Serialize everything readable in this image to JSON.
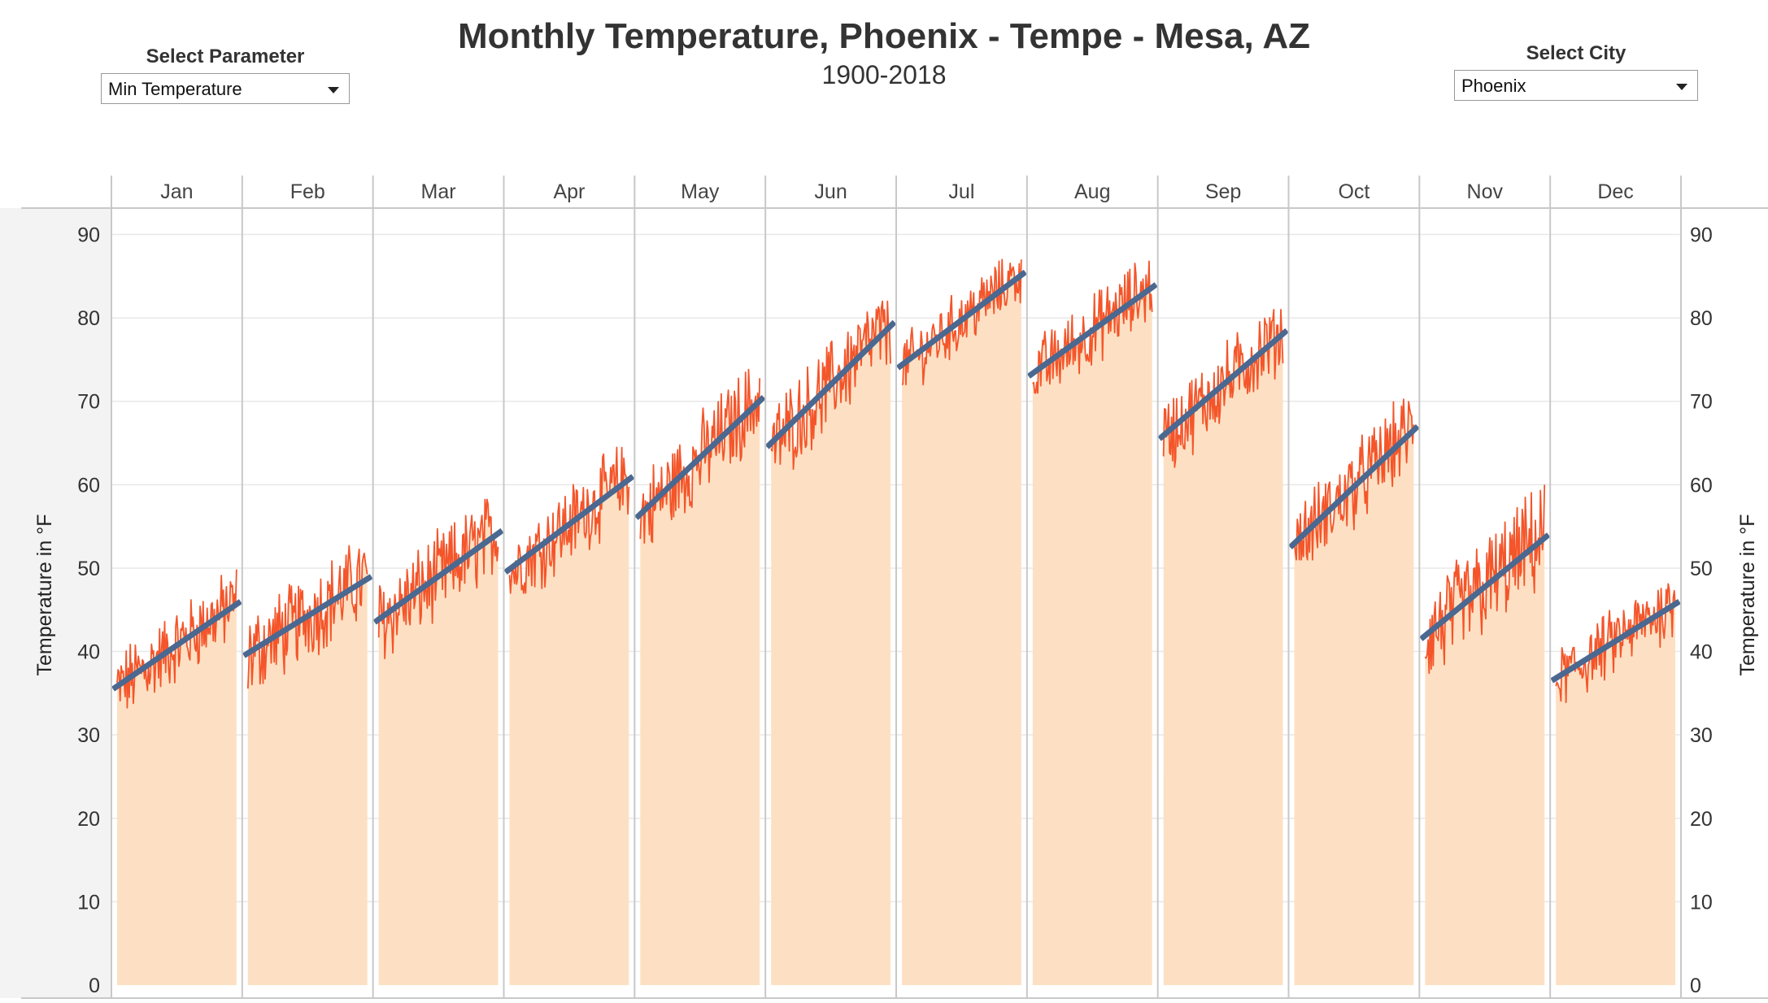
{
  "header": {
    "title": "Monthly Temperature, Phoenix - Tempe - Mesa, AZ",
    "subtitle": "1900-2018"
  },
  "controls": {
    "parameter": {
      "label": "Select Parameter",
      "value": "Min Temperature"
    },
    "city": {
      "label": "Select City",
      "value": "Phoenix"
    }
  },
  "colors": {
    "area_fill": "#fde0c3",
    "data_line": "#f4552a",
    "trend_line": "#4a6890",
    "grid": "#e8e8e8",
    "panel_border": "#c8c8c8",
    "left_band": "#f3f3f3"
  },
  "chart_data": {
    "type": "area",
    "title": "Monthly Temperature, Phoenix - Tempe - Mesa, AZ",
    "subtitle": "1900-2018",
    "ylabel": "Temperature in °F",
    "ylim": [
      0,
      92
    ],
    "yticks": [
      0,
      10,
      20,
      30,
      40,
      50,
      60,
      70,
      80,
      90
    ],
    "x_range": [
      1900,
      2018
    ],
    "grid": true,
    "legend": "none",
    "panels": [
      {
        "month": "Jan",
        "trend_start": 35.5,
        "trend_end": 46,
        "lo": 32,
        "hi": 50
      },
      {
        "month": "Feb",
        "trend_start": 39.5,
        "trend_end": 49,
        "lo": 33,
        "hi": 54
      },
      {
        "month": "Mar",
        "trend_start": 43.5,
        "trend_end": 54.5,
        "lo": 39,
        "hi": 60
      },
      {
        "month": "Apr",
        "trend_start": 49.5,
        "trend_end": 61,
        "lo": 47,
        "hi": 66
      },
      {
        "month": "May",
        "trend_start": 56,
        "trend_end": 70.5,
        "lo": 53,
        "hi": 74
      },
      {
        "month": "Jun",
        "trend_start": 64.5,
        "trend_end": 79.5,
        "lo": 61,
        "hi": 82
      },
      {
        "month": "Jul",
        "trend_start": 74,
        "trend_end": 85.5,
        "lo": 72,
        "hi": 87
      },
      {
        "month": "Aug",
        "trend_start": 73,
        "trend_end": 84,
        "lo": 71,
        "hi": 88
      },
      {
        "month": "Sep",
        "trend_start": 65.5,
        "trend_end": 78.5,
        "lo": 62,
        "hi": 81
      },
      {
        "month": "Oct",
        "trend_start": 52.5,
        "trend_end": 67,
        "lo": 51,
        "hi": 71
      },
      {
        "month": "Nov",
        "trend_start": 41.5,
        "trend_end": 54,
        "lo": 35,
        "hi": 60
      },
      {
        "month": "Dec",
        "trend_start": 36.5,
        "trend_end": 46,
        "lo": 33,
        "hi": 49
      }
    ]
  }
}
